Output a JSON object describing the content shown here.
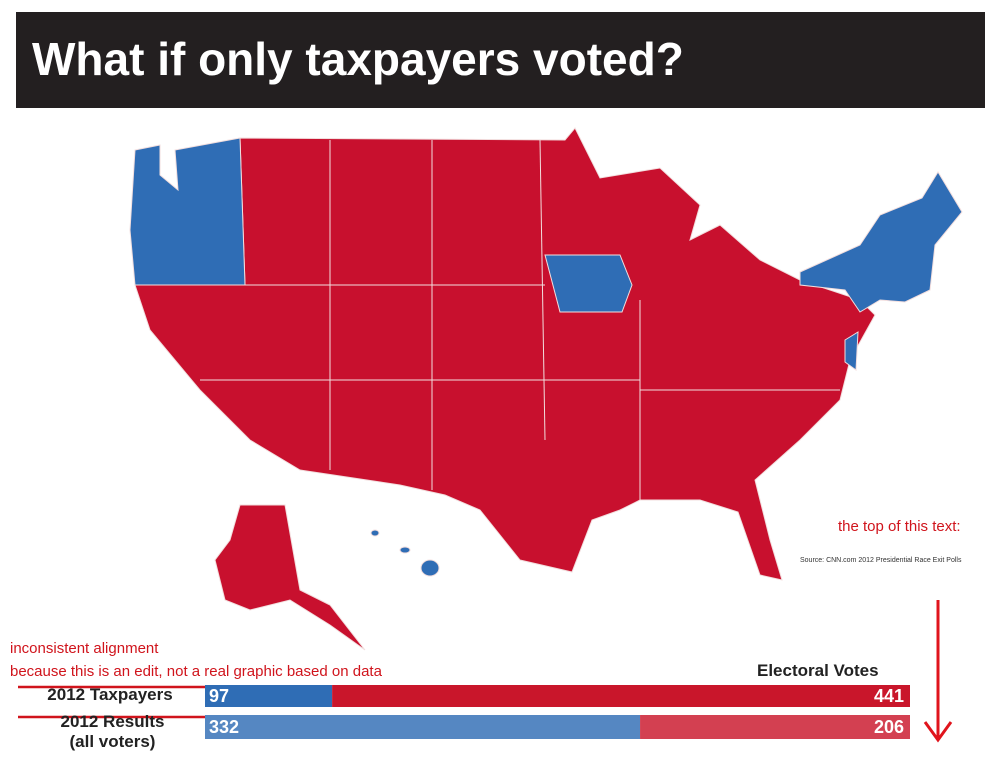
{
  "header": {
    "title": "What if only taxpayers voted?"
  },
  "source": "Source: CNN.com 2012 Presidential Race Exit Polls",
  "annotations": [
    "the top of this text:",
    "inconsistent alignment",
    "because this is an edit, not a real graphic based on data"
  ],
  "chart_data": {
    "type": "stacked-bar-horizontal",
    "x_label": "Electoral Votes",
    "categories": [
      "2012 Taxpayers",
      "2012 Results (all voters)"
    ],
    "series": [
      {
        "color": "#2f6db5",
        "values": [
          97,
          332
        ]
      },
      {
        "color": "#c9162b",
        "values": [
          441,
          206
        ]
      }
    ],
    "xlim": [
      0,
      538
    ]
  }
}
